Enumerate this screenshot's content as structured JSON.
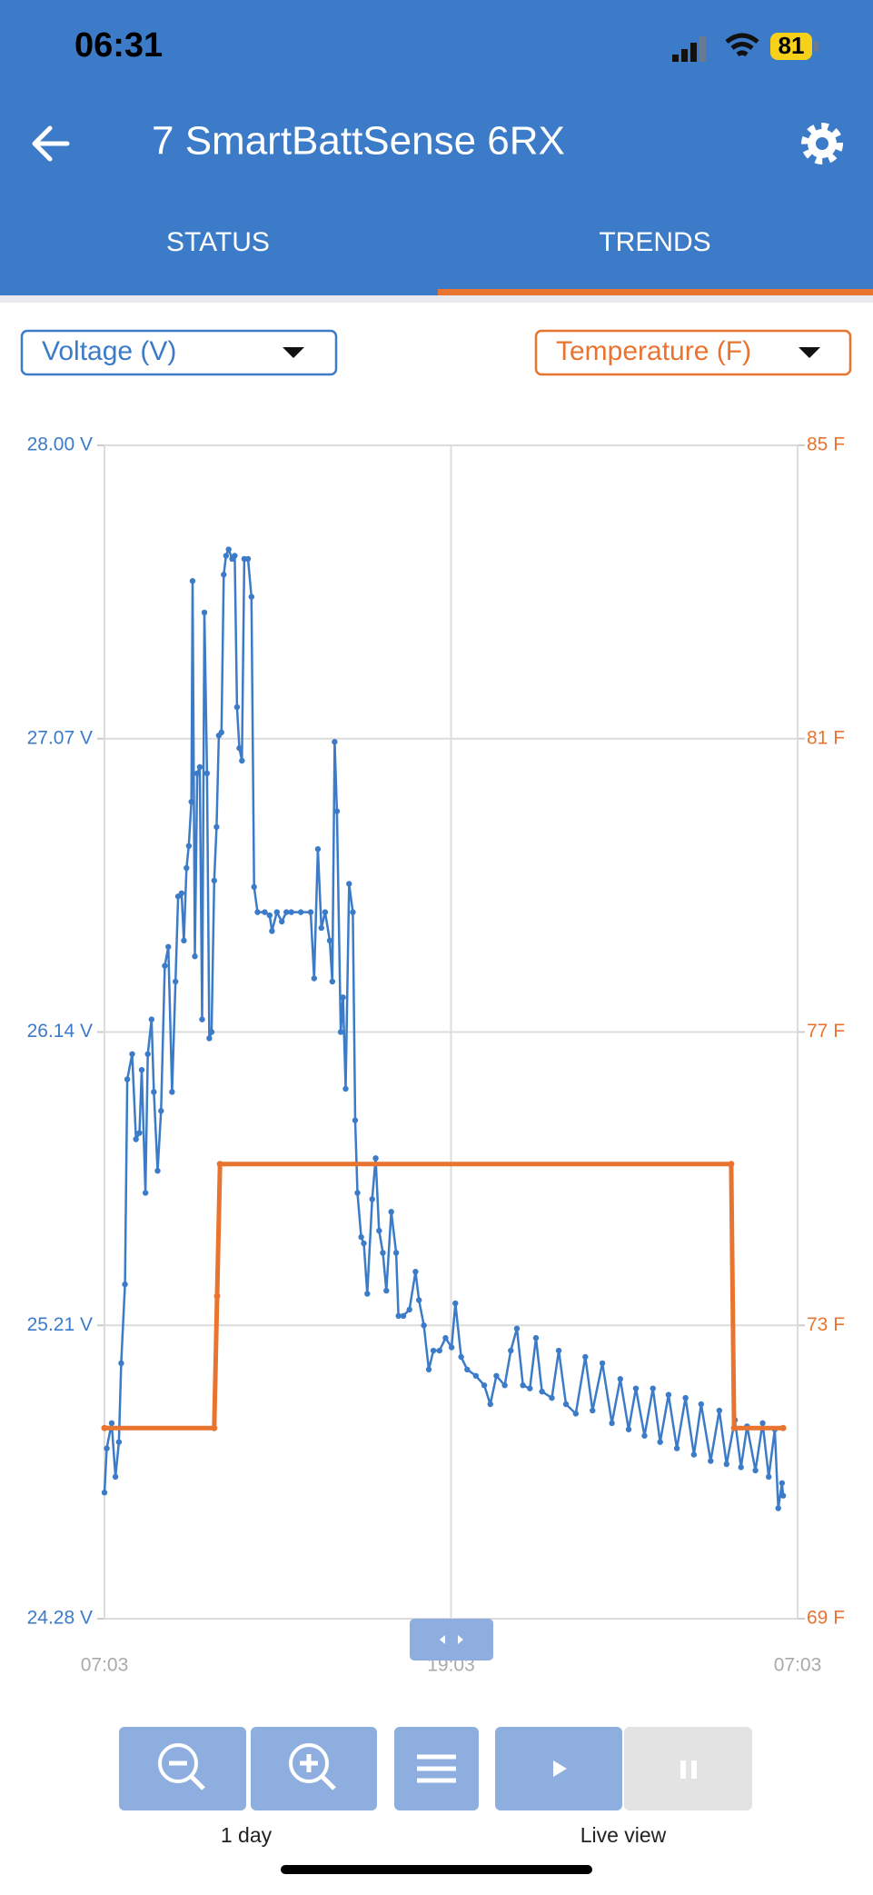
{
  "status_bar": {
    "time": "06:31",
    "battery": "81"
  },
  "header": {
    "title": "7 SmartBattSense 6RX"
  },
  "tabs": [
    "STATUS",
    "TRENDS"
  ],
  "chart_data": {
    "type": "line",
    "xlim": [
      0,
      24
    ],
    "xticks": [
      {
        "value": 0,
        "label": "07:03"
      },
      {
        "value": 12,
        "label": "19:03"
      },
      {
        "value": 24,
        "label": "07:03"
      }
    ],
    "ylim": [
      24.28,
      28.0
    ],
    "yticks": [
      {
        "value": 24.28,
        "label": "24.28 V"
      },
      {
        "value": 25.21,
        "label": "25.21 V"
      },
      {
        "value": 26.14,
        "label": "26.14 V"
      },
      {
        "value": 27.07,
        "label": "27.07 V"
      },
      {
        "value": 28.0,
        "label": "28.00 V"
      }
    ],
    "y2lim": [
      69,
      85
    ],
    "y2ticks": [
      {
        "value": 69,
        "label": "69 F"
      },
      {
        "value": 73,
        "label": "73 F"
      },
      {
        "value": 77,
        "label": "77 F"
      },
      {
        "value": 81,
        "label": "81 F"
      },
      {
        "value": 85,
        "label": "85 F"
      }
    ],
    "grid": true,
    "series": [
      {
        "name": "Voltage (V)",
        "color": "#3b7bc8",
        "x": [
          0,
          0.08,
          0.25,
          0.38,
          0.5,
          0.58,
          0.71,
          0.79,
          0.96,
          1.09,
          1.21,
          1.29,
          1.42,
          1.5,
          1.63,
          1.71,
          1.84,
          1.96,
          2.09,
          2.21,
          2.34,
          2.46,
          2.55,
          2.67,
          2.75,
          2.84,
          2.92,
          3.01,
          3.05,
          3.13,
          3.21,
          3.3,
          3.38,
          3.46,
          3.55,
          3.63,
          3.71,
          3.8,
          3.88,
          3.96,
          4.05,
          4.13,
          4.21,
          4.3,
          4.42,
          4.51,
          4.59,
          4.67,
          4.76,
          4.84,
          4.97,
          5.09,
          5.18,
          5.3,
          5.55,
          5.72,
          5.8,
          5.97,
          6.14,
          6.3,
          6.47,
          6.8,
          7.14,
          7.26,
          7.39,
          7.51,
          7.64,
          7.8,
          7.89,
          7.97,
          8.05,
          8.18,
          8.26,
          8.35,
          8.47,
          8.6,
          8.68,
          8.76,
          8.89,
          8.98,
          9.1,
          9.27,
          9.39,
          9.51,
          9.64,
          9.76,
          9.93,
          10.1,
          10.18,
          10.35,
          10.56,
          10.77,
          10.89,
          11.06,
          11.23,
          11.39,
          11.6,
          11.81,
          12.02,
          12.15,
          12.35,
          12.56,
          12.86,
          13.15,
          13.36,
          13.57,
          13.86,
          14.07,
          14.28,
          14.49,
          14.73,
          14.94,
          15.15,
          15.49,
          15.73,
          15.98,
          16.32,
          16.65,
          16.9,
          17.24,
          17.57,
          17.86,
          18.15,
          18.4,
          18.7,
          18.99,
          19.24,
          19.53,
          19.82,
          20.12,
          20.41,
          20.66,
          20.99,
          21.29,
          21.54,
          21.83,
          22.04,
          22.25,
          22.54,
          22.79,
          23.0,
          23.21,
          23.33,
          23.46,
          23.5
        ],
        "values": [
          24.68,
          24.82,
          24.9,
          24.73,
          24.84,
          25.09,
          25.34,
          25.99,
          26.07,
          25.8,
          25.82,
          26.02,
          25.63,
          26.07,
          26.18,
          25.95,
          25.7,
          25.89,
          26.35,
          26.41,
          25.95,
          26.3,
          26.57,
          26.58,
          26.43,
          26.66,
          26.73,
          26.87,
          27.57,
          26.38,
          26.96,
          26.98,
          26.18,
          27.47,
          26.96,
          26.12,
          26.14,
          26.62,
          26.79,
          27.08,
          27.09,
          27.59,
          27.65,
          27.67,
          27.64,
          27.65,
          27.17,
          27.04,
          27.0,
          27.64,
          27.64,
          27.52,
          26.6,
          26.52,
          26.52,
          26.51,
          26.46,
          26.52,
          26.49,
          26.52,
          26.52,
          26.52,
          26.52,
          26.31,
          26.72,
          26.47,
          26.52,
          26.43,
          26.3,
          27.06,
          26.84,
          26.14,
          26.25,
          25.96,
          26.61,
          26.52,
          25.86,
          25.63,
          25.49,
          25.47,
          25.31,
          25.61,
          25.74,
          25.51,
          25.44,
          25.32,
          25.57,
          25.44,
          25.24,
          25.24,
          25.26,
          25.38,
          25.29,
          25.21,
          25.07,
          25.13,
          25.13,
          25.17,
          25.14,
          25.28,
          25.11,
          25.07,
          25.05,
          25.02,
          24.96,
          25.05,
          25.02,
          25.13,
          25.2,
          25.02,
          25.01,
          25.17,
          25.0,
          24.98,
          25.13,
          24.96,
          24.93,
          25.11,
          24.94,
          25.09,
          24.9,
          25.04,
          24.88,
          25.01,
          24.86,
          25.01,
          24.84,
          24.99,
          24.82,
          24.98,
          24.8,
          24.96,
          24.78,
          24.94,
          24.77,
          24.91,
          24.76,
          24.89,
          24.75,
          24.9,
          24.73,
          24.88,
          24.63,
          24.71,
          24.67
        ]
      },
      {
        "name": "Temperature (F)",
        "color": "#e8742f",
        "axis": "y2",
        "x": [
          0,
          3.8,
          3.9,
          4.0,
          21.7,
          21.8,
          23.5
        ],
        "values": [
          71.6,
          71.6,
          73.4,
          75.2,
          75.2,
          71.6,
          71.6
        ]
      }
    ]
  },
  "controls": {
    "zoom_label": "1 day",
    "live_label": "Live view"
  }
}
